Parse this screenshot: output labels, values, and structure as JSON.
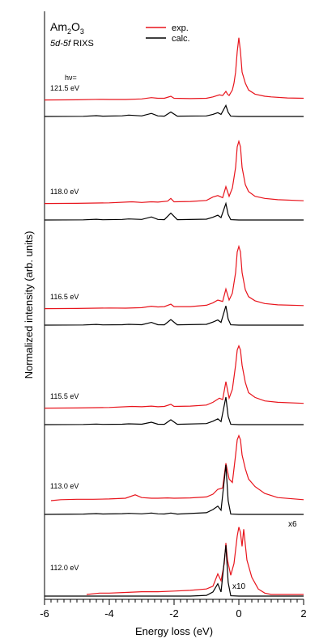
{
  "chart_data": {
    "type": "line",
    "title_parts": {
      "line1_prefix": "Am",
      "line1_sub1": "2",
      "line1_mid": "O",
      "line1_sub2": "3",
      "line2_italic": "5d-5f",
      "line2_rest": " RIXS"
    },
    "xlabel": "Energy loss (eV)",
    "ylabel": "Normalized intensity (arb. units)",
    "xlim": [
      -6,
      2
    ],
    "x_ticks": [
      {
        "label": "-6",
        "v": -6
      },
      {
        "label": "-4",
        "v": -4
      },
      {
        "label": "-2",
        "v": -2
      },
      {
        "label": "0",
        "v": 0
      },
      {
        "label": "2",
        "v": 2
      }
    ],
    "legend": [
      {
        "name": "exp.",
        "color": "#e8141c"
      },
      {
        "name": "calc.",
        "color": "#000000"
      }
    ],
    "hv_label": "hν=",
    "panels": [
      {
        "label": "121.5 eV",
        "scale": "",
        "exp": [
          [
            -6.0,
            0.75
          ],
          [
            -5.0,
            0.78
          ],
          [
            -4.3,
            0.85
          ],
          [
            -4.0,
            0.82
          ],
          [
            -3.5,
            0.82
          ],
          [
            -3.0,
            0.9
          ],
          [
            -2.7,
            1.1
          ],
          [
            -2.5,
            1.0
          ],
          [
            -2.3,
            1.0
          ],
          [
            -2.1,
            1.3
          ],
          [
            -2.0,
            1.0
          ],
          [
            -1.5,
            0.95
          ],
          [
            -1.0,
            1.0
          ],
          [
            -0.8,
            1.2
          ],
          [
            -0.6,
            1.5
          ],
          [
            -0.5,
            1.4
          ],
          [
            -0.4,
            2.0
          ],
          [
            -0.35,
            1.6
          ],
          [
            -0.3,
            1.4
          ],
          [
            -0.2,
            2.2
          ],
          [
            -0.15,
            3.2
          ],
          [
            -0.1,
            4.8
          ],
          [
            -0.05,
            7.8
          ],
          [
            0.0,
            9.8
          ],
          [
            0.05,
            7.8
          ],
          [
            0.1,
            4.8
          ],
          [
            0.2,
            3.2
          ],
          [
            0.3,
            2.2
          ],
          [
            0.5,
            1.6
          ],
          [
            0.8,
            1.3
          ],
          [
            1.0,
            1.2
          ],
          [
            1.5,
            1.05
          ],
          [
            2.0,
            1.0
          ]
        ],
        "calc": [
          [
            -6.0,
            0.0
          ],
          [
            -4.8,
            0.02
          ],
          [
            -4.4,
            0.12
          ],
          [
            -4.2,
            0.05
          ],
          [
            -3.6,
            0.1
          ],
          [
            -3.4,
            0.2
          ],
          [
            -3.0,
            0.08
          ],
          [
            -2.7,
            0.45
          ],
          [
            -2.5,
            0.08
          ],
          [
            -2.3,
            0.05
          ],
          [
            -2.1,
            0.65
          ],
          [
            -1.9,
            0.05
          ],
          [
            -1.0,
            0.08
          ],
          [
            -0.8,
            0.3
          ],
          [
            -0.65,
            0.55
          ],
          [
            -0.55,
            0.3
          ],
          [
            -0.4,
            1.6
          ],
          [
            -0.33,
            0.6
          ],
          [
            -0.25,
            0.05
          ],
          [
            0.0,
            0.0
          ],
          [
            2.0,
            0.0
          ]
        ]
      },
      {
        "label": "118.0 eV",
        "scale": "",
        "exp": [
          [
            -6.0,
            0.75
          ],
          [
            -5.0,
            0.78
          ],
          [
            -4.0,
            0.85
          ],
          [
            -3.3,
            1.0
          ],
          [
            -3.0,
            0.9
          ],
          [
            -2.7,
            1.0
          ],
          [
            -2.5,
            0.95
          ],
          [
            -2.2,
            1.1
          ],
          [
            -2.1,
            1.5
          ],
          [
            -2.0,
            1.0
          ],
          [
            -1.5,
            1.05
          ],
          [
            -1.0,
            1.2
          ],
          [
            -0.8,
            1.7
          ],
          [
            -0.65,
            1.9
          ],
          [
            -0.5,
            1.6
          ],
          [
            -0.4,
            3.2
          ],
          [
            -0.3,
            1.8
          ],
          [
            -0.2,
            3.0
          ],
          [
            -0.1,
            6.0
          ],
          [
            -0.05,
            9.0
          ],
          [
            0.0,
            9.8
          ],
          [
            0.05,
            9.0
          ],
          [
            0.1,
            6.0
          ],
          [
            0.2,
            3.5
          ],
          [
            0.3,
            2.5
          ],
          [
            0.5,
            1.8
          ],
          [
            0.8,
            1.5
          ],
          [
            1.2,
            1.3
          ],
          [
            2.0,
            1.15
          ]
        ],
        "calc": [
          [
            -6.0,
            0.0
          ],
          [
            -4.8,
            0.02
          ],
          [
            -4.4,
            0.1
          ],
          [
            -4.2,
            0.04
          ],
          [
            -3.6,
            0.08
          ],
          [
            -3.4,
            0.15
          ],
          [
            -3.0,
            0.08
          ],
          [
            -2.7,
            0.45
          ],
          [
            -2.5,
            0.08
          ],
          [
            -2.3,
            0.05
          ],
          [
            -2.1,
            1.0
          ],
          [
            -1.9,
            0.05
          ],
          [
            -1.0,
            0.12
          ],
          [
            -0.8,
            0.4
          ],
          [
            -0.65,
            0.7
          ],
          [
            -0.55,
            0.35
          ],
          [
            -0.4,
            2.4
          ],
          [
            -0.33,
            0.8
          ],
          [
            -0.25,
            0.05
          ],
          [
            0.0,
            0.0
          ],
          [
            2.0,
            0.0
          ]
        ]
      },
      {
        "label": "116.5 eV",
        "scale": "",
        "exp": [
          [
            -6.0,
            0.75
          ],
          [
            -5.0,
            0.78
          ],
          [
            -4.0,
            0.85
          ],
          [
            -3.5,
            0.82
          ],
          [
            -3.0,
            0.9
          ],
          [
            -2.7,
            1.1
          ],
          [
            -2.5,
            1.0
          ],
          [
            -2.3,
            1.05
          ],
          [
            -2.1,
            1.4
          ],
          [
            -2.0,
            1.05
          ],
          [
            -1.5,
            1.05
          ],
          [
            -1.0,
            1.25
          ],
          [
            -0.8,
            1.6
          ],
          [
            -0.65,
            2.0
          ],
          [
            -0.5,
            1.8
          ],
          [
            -0.4,
            3.6
          ],
          [
            -0.3,
            2.0
          ],
          [
            -0.2,
            3.0
          ],
          [
            -0.1,
            6.0
          ],
          [
            -0.05,
            9.0
          ],
          [
            0.0,
            9.8
          ],
          [
            0.05,
            9.0
          ],
          [
            0.1,
            6.0
          ],
          [
            0.2,
            3.5
          ],
          [
            0.3,
            2.5
          ],
          [
            0.5,
            1.9
          ],
          [
            0.8,
            1.5
          ],
          [
            1.2,
            1.3
          ],
          [
            2.0,
            1.2
          ]
        ],
        "calc": [
          [
            -6.0,
            0.0
          ],
          [
            -4.8,
            0.02
          ],
          [
            -4.4,
            0.1
          ],
          [
            -4.2,
            0.04
          ],
          [
            -3.6,
            0.06
          ],
          [
            -3.4,
            0.12
          ],
          [
            -3.0,
            0.06
          ],
          [
            -2.7,
            0.4
          ],
          [
            -2.5,
            0.06
          ],
          [
            -2.3,
            0.05
          ],
          [
            -2.1,
            0.8
          ],
          [
            -1.9,
            0.05
          ],
          [
            -1.0,
            0.12
          ],
          [
            -0.8,
            0.45
          ],
          [
            -0.65,
            0.75
          ],
          [
            -0.55,
            0.4
          ],
          [
            -0.4,
            2.8
          ],
          [
            -0.33,
            0.9
          ],
          [
            -0.25,
            0.05
          ],
          [
            0.0,
            0.0
          ],
          [
            2.0,
            0.0
          ]
        ]
      },
      {
        "label": "115.5 eV",
        "scale": "",
        "exp": [
          [
            -6.0,
            0.75
          ],
          [
            -5.0,
            0.78
          ],
          [
            -4.0,
            0.85
          ],
          [
            -3.3,
            1.0
          ],
          [
            -3.0,
            0.95
          ],
          [
            -2.7,
            1.05
          ],
          [
            -2.5,
            0.95
          ],
          [
            -2.3,
            1.0
          ],
          [
            -2.1,
            1.3
          ],
          [
            -2.0,
            1.0
          ],
          [
            -1.5,
            1.05
          ],
          [
            -1.0,
            1.2
          ],
          [
            -0.8,
            1.6
          ],
          [
            -0.6,
            2.2
          ],
          [
            -0.5,
            2.0
          ],
          [
            -0.4,
            4.6
          ],
          [
            -0.3,
            2.2
          ],
          [
            -0.2,
            3.5
          ],
          [
            -0.1,
            7.0
          ],
          [
            -0.05,
            9.2
          ],
          [
            0.0,
            9.8
          ],
          [
            0.05,
            9.2
          ],
          [
            0.1,
            7.0
          ],
          [
            0.2,
            4.5
          ],
          [
            0.3,
            3.0
          ],
          [
            0.5,
            2.3
          ],
          [
            0.8,
            1.8
          ],
          [
            1.2,
            1.6
          ],
          [
            2.0,
            1.45
          ]
        ],
        "calc": [
          [
            -6.0,
            0.0
          ],
          [
            -4.8,
            0.02
          ],
          [
            -4.4,
            0.08
          ],
          [
            -4.2,
            0.04
          ],
          [
            -3.6,
            0.06
          ],
          [
            -3.4,
            0.12
          ],
          [
            -3.0,
            0.06
          ],
          [
            -2.7,
            0.35
          ],
          [
            -2.5,
            0.06
          ],
          [
            -2.3,
            0.05
          ],
          [
            -2.1,
            0.7
          ],
          [
            -1.9,
            0.05
          ],
          [
            -1.0,
            0.15
          ],
          [
            -0.8,
            0.5
          ],
          [
            -0.65,
            0.85
          ],
          [
            -0.55,
            0.45
          ],
          [
            -0.4,
            4.0
          ],
          [
            -0.33,
            1.2
          ],
          [
            -0.25,
            0.05
          ],
          [
            0.0,
            0.0
          ],
          [
            2.0,
            0.0
          ]
        ]
      },
      {
        "label": "113.0 eV",
        "scale": "x6",
        "exp": [
          [
            -5.8,
            0.35
          ],
          [
            -5.5,
            0.5
          ],
          [
            -5.0,
            0.55
          ],
          [
            -4.5,
            0.55
          ],
          [
            -4.0,
            0.6
          ],
          [
            -3.5,
            0.7
          ],
          [
            -3.2,
            1.2
          ],
          [
            -3.0,
            0.8
          ],
          [
            -2.7,
            0.7
          ],
          [
            -2.5,
            0.7
          ],
          [
            -2.2,
            0.75
          ],
          [
            -2.0,
            0.7
          ],
          [
            -1.5,
            0.75
          ],
          [
            -1.0,
            0.9
          ],
          [
            -0.8,
            1.3
          ],
          [
            -0.65,
            2.0
          ],
          [
            -0.5,
            2.2
          ],
          [
            -0.4,
            5.8
          ],
          [
            -0.3,
            3.5
          ],
          [
            -0.2,
            3.0
          ],
          [
            -0.1,
            7.0
          ],
          [
            -0.05,
            9.2
          ],
          [
            0.0,
            9.8
          ],
          [
            0.05,
            9.2
          ],
          [
            0.1,
            7.0
          ],
          [
            0.2,
            5.0
          ],
          [
            0.3,
            3.5
          ],
          [
            0.5,
            2.4
          ],
          [
            0.8,
            1.4
          ],
          [
            1.2,
            0.8
          ],
          [
            2.0,
            0.5
          ]
        ],
        "calc": [
          [
            -6.0,
            0.0
          ],
          [
            -4.8,
            0.05
          ],
          [
            -4.4,
            0.12
          ],
          [
            -4.2,
            0.06
          ],
          [
            -3.6,
            0.1
          ],
          [
            -3.4,
            0.15
          ],
          [
            -3.0,
            0.08
          ],
          [
            -2.7,
            0.2
          ],
          [
            -2.5,
            0.08
          ],
          [
            -2.3,
            0.06
          ],
          [
            -2.1,
            0.2
          ],
          [
            -1.9,
            0.05
          ],
          [
            -1.0,
            0.25
          ],
          [
            -0.8,
            0.7
          ],
          [
            -0.65,
            1.2
          ],
          [
            -0.55,
            0.6
          ],
          [
            -0.4,
            7.2
          ],
          [
            -0.33,
            2.0
          ],
          [
            -0.25,
            0.05
          ],
          [
            0.0,
            0.0
          ],
          [
            2.0,
            0.0
          ]
        ]
      },
      {
        "label": "112.0 eV",
        "scale": "x10",
        "exp": [
          [
            -4.7,
            0.0
          ],
          [
            -4.3,
            0.2
          ],
          [
            -4.0,
            0.2
          ],
          [
            -3.5,
            0.3
          ],
          [
            -3.0,
            0.4
          ],
          [
            -2.5,
            0.4
          ],
          [
            -2.0,
            0.5
          ],
          [
            -1.5,
            0.6
          ],
          [
            -1.0,
            0.8
          ],
          [
            -0.8,
            1.2
          ],
          [
            -0.65,
            3.0
          ],
          [
            -0.55,
            2.0
          ],
          [
            -0.45,
            4.5
          ],
          [
            -0.4,
            7.5
          ],
          [
            -0.35,
            5.0
          ],
          [
            -0.25,
            2.8
          ],
          [
            -0.15,
            4.5
          ],
          [
            -0.05,
            8.5
          ],
          [
            0.0,
            9.8
          ],
          [
            0.05,
            9.0
          ],
          [
            0.1,
            7.0
          ],
          [
            0.15,
            9.5
          ],
          [
            0.25,
            5.0
          ],
          [
            0.4,
            2.5
          ],
          [
            0.6,
            0.8
          ],
          [
            0.8,
            0.2
          ],
          [
            1.0,
            0.0
          ],
          [
            2.0,
            0.0
          ]
        ],
        "calc": [
          [
            -6.0,
            0.0
          ],
          [
            -1.5,
            0.0
          ],
          [
            -1.0,
            0.1
          ],
          [
            -0.8,
            0.6
          ],
          [
            -0.65,
            1.8
          ],
          [
            -0.55,
            0.6
          ],
          [
            -0.4,
            7.4
          ],
          [
            -0.33,
            2.0
          ],
          [
            -0.25,
            0.05
          ],
          [
            0.0,
            0.0
          ],
          [
            2.0,
            0.0
          ]
        ]
      }
    ]
  }
}
